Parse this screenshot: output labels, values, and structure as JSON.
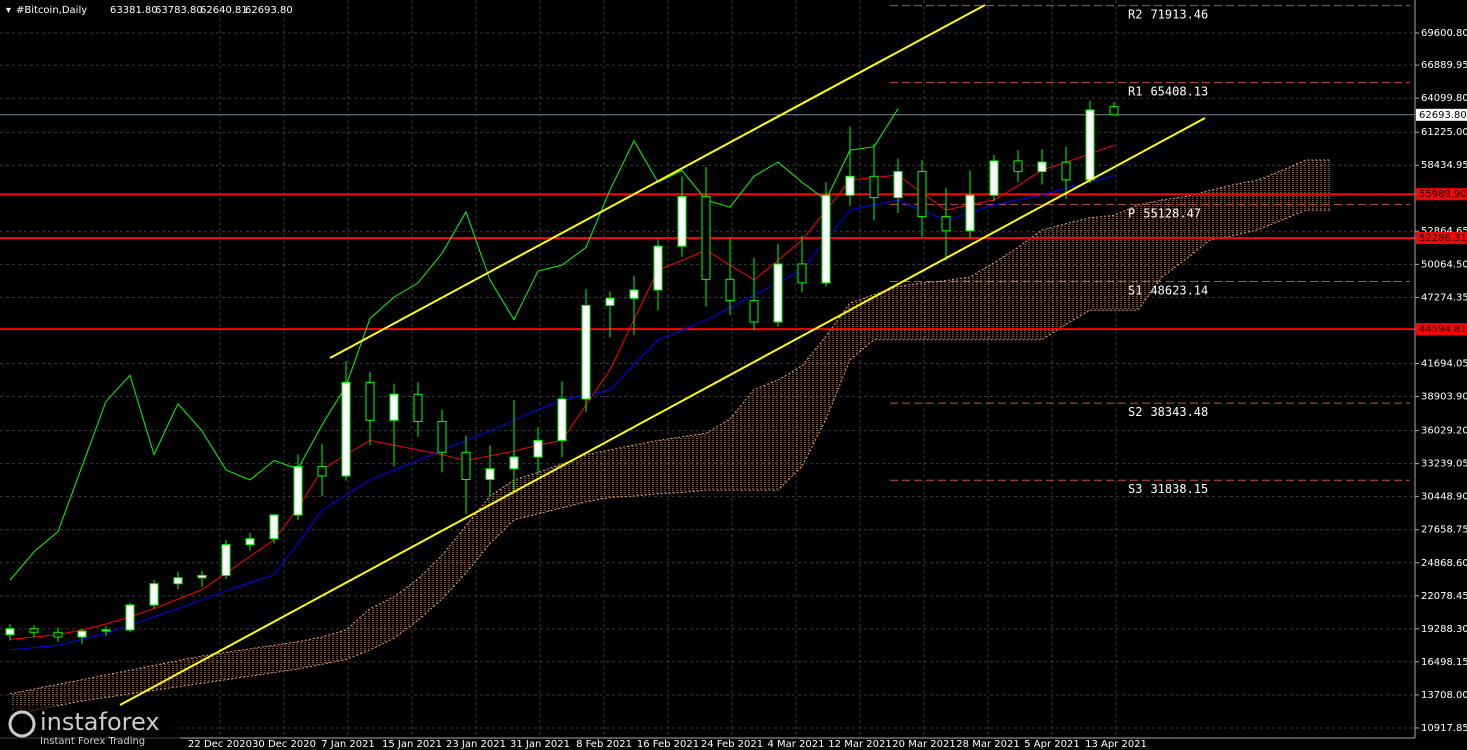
{
  "chart_data": {
    "type": "candlestick",
    "header": {
      "symbol": "#Bitcoin,Daily",
      "ohlc": [
        "63381.80",
        "63783.80",
        "62640.81",
        "62693.80"
      ]
    },
    "ylim": [
      10073,
      72387
    ],
    "yticks": [
      {
        "value": 69600.8,
        "label": "69600.80"
      },
      66889.95,
      {
        "value": 64099.8,
        "label": "64099.80"
      },
      {
        "value": 61225,
        "label": "61225.00"
      },
      58434.95,
      52864.65,
      {
        "value": 50064.5,
        "label": "50064.50"
      },
      47274.35,
      41694.05,
      {
        "value": 38903.9,
        "label": "38903.90"
      },
      {
        "value": 36029.2,
        "label": "36029.20"
      },
      33239.05,
      {
        "value": 30448.9,
        "label": "30448.90"
      },
      27658.75,
      {
        "value": 24868.6,
        "label": "24868.60"
      },
      22078.45,
      {
        "value": 19288.3,
        "label": "19288.30"
      },
      16498.15,
      {
        "value": 13708,
        "label": "13708.00"
      },
      10917.85
    ],
    "x_labels": [
      "22 Dec 2020",
      "30 Dec 2020",
      "7 Jan 2021",
      "15 Jan 2021",
      "23 Jan 2021",
      "31 Jan 2021",
      "8 Feb 2021",
      "16 Feb 2021",
      "24 Feb 2021",
      "4 Mar 2021",
      "12 Mar 2021",
      "20 Mar 2021",
      "28 Mar 2021",
      "5 Apr 2021",
      "13 Apr 2021"
    ],
    "candles": [
      [
        18800,
        19700,
        18300,
        19300
      ],
      [
        19300,
        19600,
        18600,
        19000
      ],
      [
        19000,
        19400,
        18200,
        18600
      ],
      [
        18600,
        19300,
        18000,
        19100
      ],
      [
        19100,
        19500,
        18700,
        19200
      ],
      [
        19200,
        21500,
        19000,
        21300
      ],
      [
        21300,
        23400,
        21000,
        23100
      ],
      [
        23100,
        24100,
        22600,
        23600
      ],
      [
        23600,
        24200,
        22800,
        23800
      ],
      [
        23800,
        26800,
        23500,
        26400
      ],
      [
        26400,
        27400,
        25900,
        26900
      ],
      [
        26900,
        29000,
        26500,
        28900
      ],
      [
        28900,
        34000,
        28500,
        33000
      ],
      [
        33000,
        34900,
        30500,
        32200
      ],
      [
        32200,
        41900,
        31800,
        40100
      ],
      [
        40100,
        41000,
        34800,
        36900
      ],
      [
        36900,
        40000,
        33000,
        39100
      ],
      [
        39100,
        40100,
        35500,
        36800
      ],
      [
        36800,
        37800,
        32500,
        34200
      ],
      [
        34200,
        35600,
        29000,
        31900
      ],
      [
        31900,
        34800,
        30500,
        32800
      ],
      [
        32800,
        38600,
        30800,
        33800
      ],
      [
        33800,
        36300,
        32300,
        35200
      ],
      [
        35200,
        40200,
        33800,
        38700
      ],
      [
        38700,
        48000,
        37600,
        46600
      ],
      [
        46600,
        47800,
        43900,
        47200
      ],
      [
        47200,
        49100,
        44100,
        47900
      ],
      [
        47900,
        52200,
        46200,
        51600
      ],
      [
        51600,
        57500,
        50700,
        55800
      ],
      [
        55800,
        58300,
        46500,
        48800
      ],
      [
        48800,
        52300,
        45800,
        47000
      ],
      [
        47000,
        50600,
        44500,
        45200
      ],
      [
        45200,
        51800,
        44800,
        50100
      ],
      [
        50100,
        52500,
        47700,
        48500
      ],
      [
        48500,
        57000,
        48200,
        55900
      ],
      [
        55900,
        61700,
        55000,
        57500
      ],
      [
        57500,
        60200,
        53800,
        55700
      ],
      [
        55700,
        59000,
        54400,
        57900
      ],
      [
        57900,
        58900,
        52400,
        54100
      ],
      [
        54100,
        56500,
        50400,
        52900
      ],
      [
        52900,
        58000,
        52300,
        55900
      ],
      [
        55900,
        59300,
        55400,
        58800
      ],
      [
        58800,
        59700,
        57000,
        57900
      ],
      [
        57900,
        59800,
        56800,
        58700
      ],
      [
        58700,
        60000,
        55600,
        57200
      ],
      [
        57200,
        63900,
        56900,
        63100
      ],
      [
        63381.8,
        63783.8,
        62640.81,
        62693.8
      ]
    ],
    "series": [
      {
        "color": "#ff0000",
        "values": [
          18400,
          18600,
          18800,
          19200,
          19700,
          20300,
          21000,
          21800,
          22600,
          24000,
          25400,
          26800,
          29500,
          32700,
          34000,
          35200,
          34800,
          34400,
          34000,
          33500,
          33900,
          34300,
          34800,
          35200,
          38200,
          41150,
          45400,
          49600,
          50400,
          51280,
          50000,
          48750,
          50400,
          52120,
          54600,
          57190,
          57400,
          57600,
          56100,
          54650,
          55100,
          55500,
          56700,
          58030,
          58700,
          59400,
          60140
        ]
      },
      {
        "color": "#0000ff",
        "values": [
          17500,
          17700,
          17900,
          18400,
          18900,
          19600,
          20300,
          21000,
          21730,
          22500,
          23200,
          23840,
          26500,
          29300,
          30600,
          31860,
          32700,
          33500,
          34400,
          35200,
          36000,
          36900,
          37800,
          38600,
          39000,
          39460,
          41600,
          43680,
          44500,
          45370,
          46400,
          47480,
          48500,
          49600,
          52100,
          54650,
          55100,
          55500,
          54600,
          53800,
          54400,
          55080,
          55500,
          55920,
          56500,
          57000,
          57600
        ]
      },
      {
        "color": "#00ff00",
        "values": [
          23400,
          25800,
          27500,
          33000,
          38500,
          40700,
          34000,
          38300,
          36000,
          32700,
          31860,
          33500,
          32800,
          36500,
          39800,
          45500,
          47300,
          48500,
          51000,
          54500,
          48750,
          45400,
          49500,
          50000,
          51500,
          56350,
          60500,
          57000,
          58000,
          55500,
          54900,
          57500,
          58700,
          57000,
          55500,
          59700,
          60000,
          63200
        ]
      }
    ],
    "cloud_color": "#e8a070",
    "cloud_a": [
      13800,
      14200,
      14600,
      15000,
      15400,
      15800,
      16200,
      16600,
      17000,
      17300,
      17600,
      17900,
      18200,
      18600,
      19200,
      21000,
      22000,
      23500,
      25500,
      28000,
      30500,
      31860,
      32500,
      33200,
      34000,
      34400,
      34800,
      35200,
      35500,
      35800,
      37000,
      39500,
      40300,
      41500,
      44000,
      46800,
      47500,
      48200,
      48500,
      48700,
      49000,
      50200,
      51500,
      52960,
      53500,
      54000,
      54200,
      55080,
      55500,
      55800,
      56300,
      56800,
      57190,
      58000,
      58880,
      58880
    ],
    "cloud_b": [
      12000,
      12400,
      12800,
      13200,
      13500,
      13800,
      14100,
      14400,
      14700,
      15000,
      15300,
      15600,
      15900,
      16300,
      16700,
      17500,
      18500,
      20000,
      21800,
      24000,
      26500,
      28500,
      29000,
      29500,
      30000,
      30400,
      30500,
      30700,
      30800,
      31000,
      31000,
      31000,
      31000,
      33000,
      37000,
      42000,
      43700,
      43700,
      43700,
      43700,
      43700,
      43700,
      43700,
      43700,
      45000,
      46200,
      46200,
      46200,
      49000,
      50500,
      52120,
      52500,
      53000,
      53800,
      54650,
      54650
    ],
    "pivots": [
      {
        "name": "R2",
        "value": 71913.46
      },
      {
        "name": "R1",
        "value": 65408.13
      },
      {
        "name": "P",
        "value": 55128.47
      },
      {
        "name": "S1",
        "value": 48623.14
      },
      {
        "name": "S2",
        "value": 38343.48
      },
      {
        "name": "S3",
        "value": 31838.15
      }
    ],
    "levels": [
      {
        "value": 55989.9,
        "label": "55989.90"
      },
      52286.31,
      44594.81
    ],
    "current_price": {
      "value": 62693.8,
      "label": "62693.80"
    },
    "watermark": {
      "brand": "instaforex",
      "tagline": "Instant Forex Trading"
    }
  }
}
